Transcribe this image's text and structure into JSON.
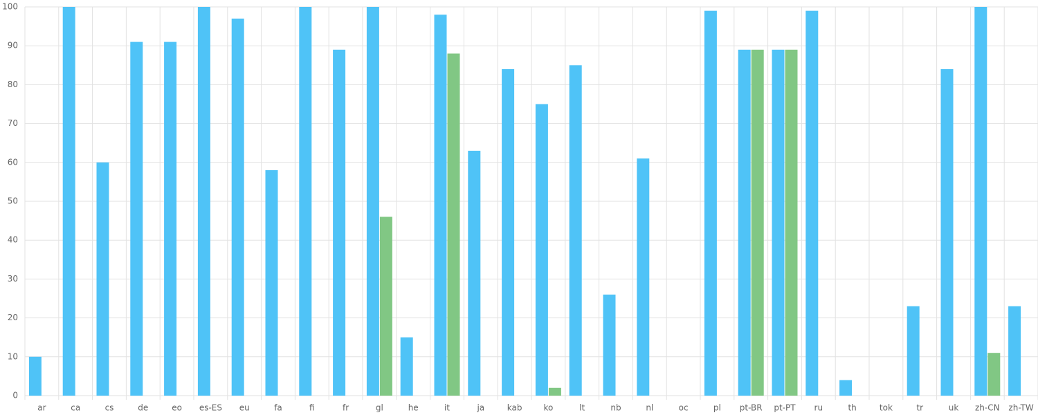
{
  "chart_data": {
    "type": "bar",
    "categories": [
      "ar",
      "ca",
      "cs",
      "de",
      "eo",
      "es-ES",
      "eu",
      "fa",
      "fi",
      "fr",
      "gl",
      "he",
      "it",
      "ja",
      "kab",
      "ko",
      "lt",
      "nb",
      "nl",
      "oc",
      "pl",
      "pt-BR",
      "pt-PT",
      "ru",
      "th",
      "tok",
      "tr",
      "uk",
      "zh-CN",
      "zh-TW"
    ],
    "series": [
      {
        "color": "#4fc3f7",
        "values": [
          10,
          100,
          60,
          91,
          91,
          100,
          97,
          58,
          100,
          89,
          100,
          15,
          98,
          63,
          84,
          75,
          85,
          26,
          61,
          0,
          99,
          89,
          89,
          99,
          4,
          0,
          23,
          84,
          100,
          23
        ]
      },
      {
        "color": "#81c784",
        "values": [
          0,
          0,
          0,
          0,
          0,
          0,
          0,
          0,
          0,
          0,
          46,
          0,
          88,
          0,
          0,
          2,
          0,
          0,
          0,
          0,
          0,
          89,
          89,
          0,
          0,
          0,
          0,
          0,
          11,
          0
        ]
      }
    ],
    "ylim": [
      0,
      100
    ],
    "yticks": [
      0,
      10,
      20,
      30,
      40,
      50,
      60,
      70,
      80,
      90,
      100
    ],
    "grid": true
  }
}
